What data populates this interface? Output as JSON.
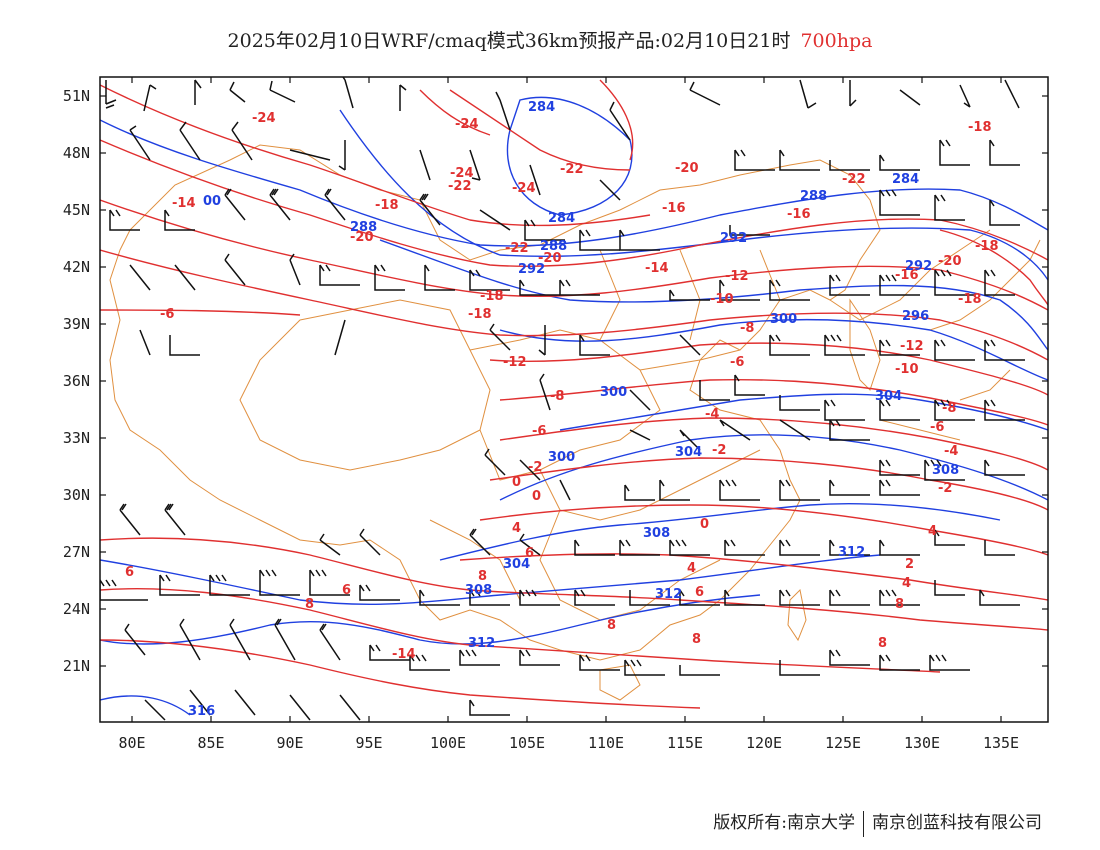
{
  "header": {
    "title": "2025年02月10日WRF/cmaq模式36km预报产品:02月10日21时",
    "level": "700hpa"
  },
  "footer": {
    "copyright": "版权所有:南京大学",
    "company": "南京创蓝科技有限公司"
  },
  "map": {
    "lon_range": [
      78,
      138
    ],
    "lat_range": [
      18.5,
      52
    ],
    "lon_ticks": [
      "80E",
      "85E",
      "90E",
      "95E",
      "100E",
      "105E",
      "110E",
      "115E",
      "120E",
      "125E",
      "130E",
      "135E"
    ],
    "lat_ticks": [
      "51N",
      "48N",
      "45N",
      "42N",
      "39N",
      "36N",
      "33N",
      "30N",
      "27N",
      "24N",
      "21N"
    ],
    "colors": {
      "temperature": "#e03030",
      "height": "#2040e0",
      "border": "#e09040",
      "barb": "#111111"
    },
    "temperature_labels": [
      "-24",
      "-24",
      "-24",
      "-22",
      "-24",
      "-22",
      "-20",
      "-16",
      "-14",
      "-22",
      "-18",
      "-20",
      "-22",
      "-20",
      "-16",
      "-14",
      "-12",
      "-18",
      "-20",
      "-18",
      "-10",
      "-16",
      "-18",
      "-8",
      "-6",
      "-12",
      "-12",
      "-6",
      "-10",
      "-8",
      "-8",
      "-4",
      "-6",
      "-6",
      "-2",
      "-2",
      "-4",
      "0",
      "-2",
      "0",
      "4",
      "0",
      "4",
      "2",
      "6",
      "6",
      "4",
      "8",
      "6",
      "6",
      "4",
      "8",
      "8",
      "8",
      "8",
      "8",
      "-14",
      "-18",
      "-18"
    ],
    "height_labels": [
      "284",
      "00",
      "288",
      "284",
      "288",
      "284",
      "292",
      "292",
      "288",
      "292",
      "300",
      "296",
      "300",
      "304",
      "304",
      "300",
      "308",
      "308",
      "304",
      "312",
      "308",
      "312",
      "312",
      "316"
    ]
  }
}
